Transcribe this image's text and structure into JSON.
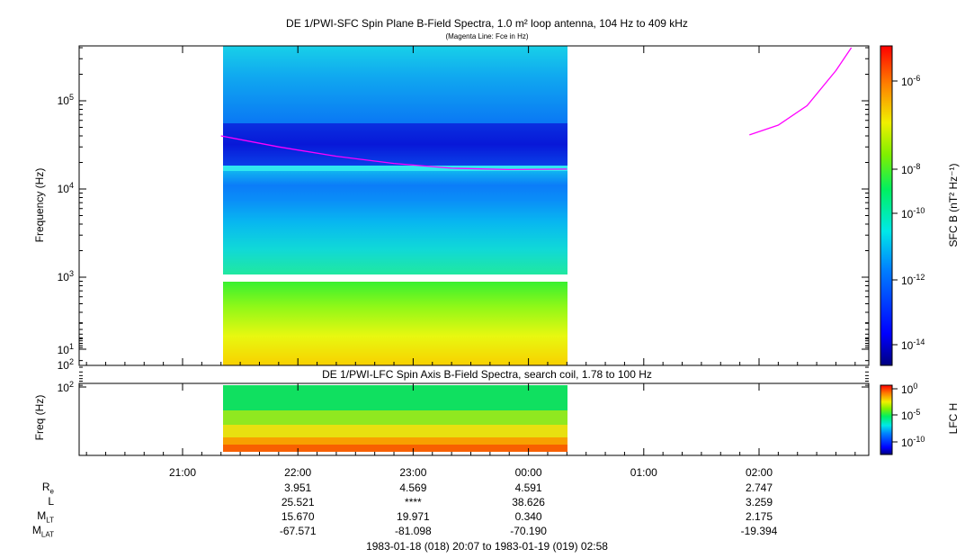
{
  "chart_data": [
    {
      "type": "heatmap",
      "title": "DE 1/PWI-SFC  Spin Plane B-Field Spectra, 1.0 m² loop antenna, 104 Hz to 409 kHz",
      "subtitle": "(Magenta Line: Fce in Hz)",
      "ylabel": "Frequency (Hz)",
      "yscale": "log",
      "ylim": [
        100,
        409000
      ],
      "yticks": [
        {
          "base": "10",
          "exp": "2",
          "value": 100
        },
        {
          "base": "10",
          "exp": "3",
          "value": 1000
        },
        {
          "base": "10",
          "exp": "4",
          "value": 10000
        },
        {
          "base": "10",
          "exp": "5",
          "value": 100000
        }
      ],
      "xlim": [
        "1983-01-18 20:07",
        "1983-01-19 02:58"
      ],
      "data_coverage": [
        "1983-01-18 21:20",
        "1983-01-19 00:20"
      ],
      "colorbar": {
        "label": "SFC B (nT² Hz⁻¹)",
        "scale": "log",
        "range": [
          1e-15,
          1e-05
        ],
        "ticks": [
          {
            "base": "10",
            "exp": "-6"
          },
          {
            "base": "10",
            "exp": "-8"
          },
          {
            "base": "10",
            "exp": "-10"
          },
          {
            "base": "10",
            "exp": "-12"
          },
          {
            "base": "10",
            "exp": "-14"
          }
        ]
      },
      "fce_line": {
        "color": "#ff00ff",
        "segment1": [
          [
            "21:20",
            40000
          ],
          [
            "21:50",
            30000
          ],
          [
            "22:20",
            23500
          ],
          [
            "22:50",
            19500
          ],
          [
            "23:20",
            17200
          ],
          [
            "23:50",
            16600
          ],
          [
            "00:20",
            16800
          ]
        ],
        "segment2": [
          [
            "01:55",
            41000
          ],
          [
            "02:10",
            53000
          ],
          [
            "02:25",
            88000
          ],
          [
            "02:40",
            220000
          ],
          [
            "02:48",
            400000
          ]
        ]
      }
    },
    {
      "type": "heatmap",
      "title": "DE 1/PWI-LFC  Spin Axis B-Field Spectra, search coil, 1.78 to 100 Hz",
      "ylabel": "Freq (Hz)",
      "yscale": "log",
      "ylim": [
        1.78,
        100
      ],
      "yticks": [
        {
          "base": "10",
          "exp": "1",
          "value": 10
        },
        {
          "base": "10",
          "exp": "2",
          "value": 100
        }
      ],
      "colorbar": {
        "label": "LFC H",
        "scale": "log",
        "range": [
          1e-12,
          1
        ],
        "ticks": [
          {
            "base": "10",
            "exp": "0"
          },
          {
            "base": "10",
            "exp": "-5"
          },
          {
            "base": "10",
            "exp": "-10"
          }
        ]
      }
    }
  ],
  "x_axis": {
    "ticks": [
      "21:00",
      "22:00",
      "23:00",
      "00:00",
      "01:00",
      "02:00"
    ]
  },
  "ephemeris": {
    "rows": [
      {
        "base": "R",
        "sub": "e",
        "values": [
          "3.951",
          "4.569",
          "4.591",
          "",
          "2.747"
        ]
      },
      {
        "base": "L",
        "sub": "",
        "values": [
          "25.521",
          "****",
          "38.626",
          "",
          "3.259"
        ]
      },
      {
        "base": "M",
        "sub": "LT",
        "values": [
          "15.670",
          "19.971",
          "0.340",
          "",
          "2.175"
        ]
      },
      {
        "base": "M",
        "sub": "LAT",
        "values": [
          "-67.571",
          "-81.098",
          "-70.190",
          "",
          "-19.394"
        ]
      }
    ]
  },
  "footer": "1983-01-18 (018) 20:07 to 1983-01-19 (019) 02:58"
}
